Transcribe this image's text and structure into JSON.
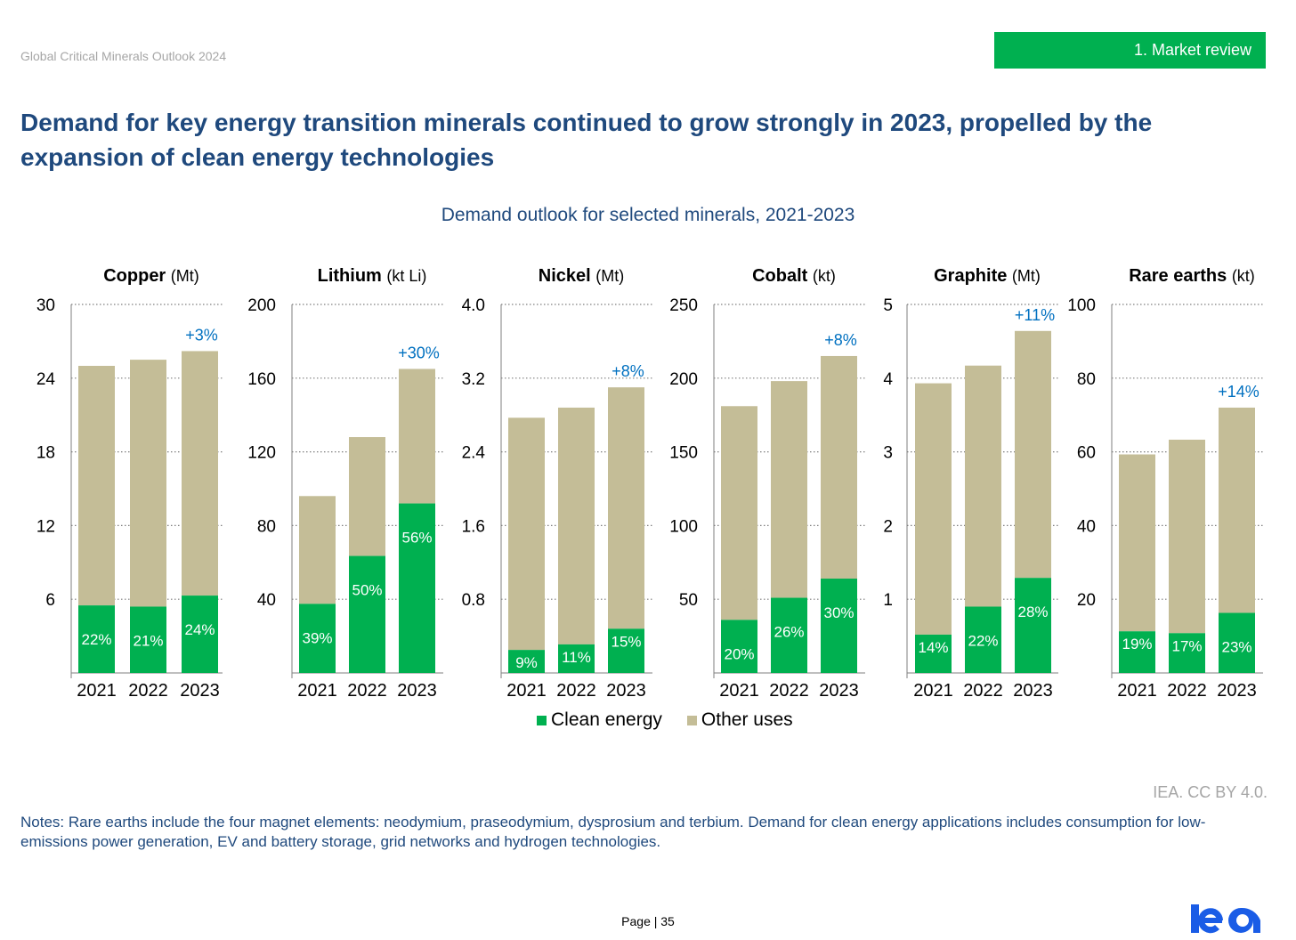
{
  "header": {
    "report_name": "Global Critical Minerals Outlook 2024",
    "section_tab": "1.   Market review"
  },
  "headline": "Demand for key energy transition minerals continued to grow strongly in 2023, propelled by the expansion of clean energy technologies",
  "colors": {
    "clean": "#00b050",
    "other": "#c4bd97",
    "growth": "#0070c0",
    "title": "#1f497d"
  },
  "chart_data": {
    "type": "bar",
    "stacked": true,
    "title": "Demand outlook for selected minerals, 2021-2023",
    "legend": {
      "placement": "bottom-center",
      "entries": [
        "Clean energy",
        "Other uses"
      ]
    },
    "panels": [
      {
        "name": "Copper",
        "unit": "(Mt)",
        "categories": [
          "2021",
          "2022",
          "2023"
        ],
        "ylim": [
          0,
          30
        ],
        "ticks": [
          "6",
          "12",
          "18",
          "24",
          "30"
        ],
        "tick_values": [
          6,
          12,
          18,
          24,
          30
        ],
        "series": [
          {
            "name": "Clean energy",
            "values": [
              5.5,
              5.4,
              6.3
            ]
          },
          {
            "name": "Other uses",
            "values": [
              19.5,
              20.1,
              19.9
            ]
          }
        ],
        "share_labels": [
          "22%",
          "21%",
          "24%"
        ],
        "growth_label": "+3%"
      },
      {
        "name": "Lithium",
        "unit": "(kt Li)",
        "categories": [
          "2021",
          "2022",
          "2023"
        ],
        "ylim": [
          0,
          200
        ],
        "ticks": [
          "40",
          "80",
          "120",
          "160",
          "200"
        ],
        "tick_values": [
          40,
          80,
          120,
          160,
          200
        ],
        "series": [
          {
            "name": "Clean energy",
            "values": [
              37.5,
              63.5,
              92
            ]
          },
          {
            "name": "Other uses",
            "values": [
              58.5,
              64.5,
              73
            ]
          }
        ],
        "share_labels": [
          "39%",
          "50%",
          "56%"
        ],
        "growth_label": "+30%"
      },
      {
        "name": "Nickel",
        "unit": "(Mt)",
        "categories": [
          "2021",
          "2022",
          "2023"
        ],
        "ylim": [
          0,
          4
        ],
        "ticks": [
          "0.8",
          "1.6",
          "2.4",
          "3.2",
          "4.0"
        ],
        "tick_values": [
          0.8,
          1.6,
          2.4,
          3.2,
          4.0
        ],
        "series": [
          {
            "name": "Clean energy",
            "values": [
              0.25,
              0.31,
              0.48
            ]
          },
          {
            "name": "Other uses",
            "values": [
              2.52,
              2.57,
              2.62
            ]
          }
        ],
        "share_labels": [
          "9%",
          "11%",
          "15%"
        ],
        "growth_label": "+8%"
      },
      {
        "name": "Cobalt",
        "unit": "(kt)",
        "categories": [
          "2021",
          "2022",
          "2023"
        ],
        "ylim": [
          0,
          250
        ],
        "ticks": [
          "50",
          "100",
          "150",
          "200",
          "250"
        ],
        "tick_values": [
          50,
          100,
          150,
          200,
          250
        ],
        "series": [
          {
            "name": "Clean energy",
            "values": [
              36,
              51,
              64
            ]
          },
          {
            "name": "Other uses",
            "values": [
              145,
              147,
              151
            ]
          }
        ],
        "share_labels": [
          "20%",
          "26%",
          "30%"
        ],
        "growth_label": "+8%"
      },
      {
        "name": "Graphite",
        "unit": "(Mt)",
        "categories": [
          "2021",
          "2022",
          "2023"
        ],
        "ylim": [
          0,
          5
        ],
        "ticks": [
          "1",
          "2",
          "3",
          "4",
          "5"
        ],
        "tick_values": [
          1,
          2,
          3,
          4,
          5
        ],
        "series": [
          {
            "name": "Clean energy",
            "values": [
              0.52,
              0.9,
              1.29
            ]
          },
          {
            "name": "Other uses",
            "values": [
              3.41,
              3.27,
              3.35
            ]
          }
        ],
        "share_labels": [
          "14%",
          "22%",
          "28%"
        ],
        "growth_label": "+11%"
      },
      {
        "name": "Rare earths",
        "unit": "(kt)",
        "categories": [
          "2021",
          "2022",
          "2023"
        ],
        "ylim": [
          0,
          100
        ],
        "ticks": [
          "20",
          "40",
          "60",
          "80",
          "100"
        ],
        "tick_values": [
          20,
          40,
          60,
          80,
          100
        ],
        "series": [
          {
            "name": "Clean energy",
            "values": [
              11.3,
              10.8,
              16.3
            ]
          },
          {
            "name": "Other uses",
            "values": [
              48,
              52.5,
              55.7
            ]
          }
        ],
        "share_labels": [
          "19%",
          "17%",
          "23%"
        ],
        "growth_label": "+14%"
      }
    ]
  },
  "credit": "IEA. CC BY 4.0.",
  "notes": "Notes: Rare earths include the four magnet elements: neodymium, praseodymium, dysprosium and terbium. Demand for clean energy applications includes consumption for low-emissions power generation, EV and battery storage, grid networks and hydrogen technologies.",
  "page_number": "Page | 35",
  "logo_text": "iea"
}
